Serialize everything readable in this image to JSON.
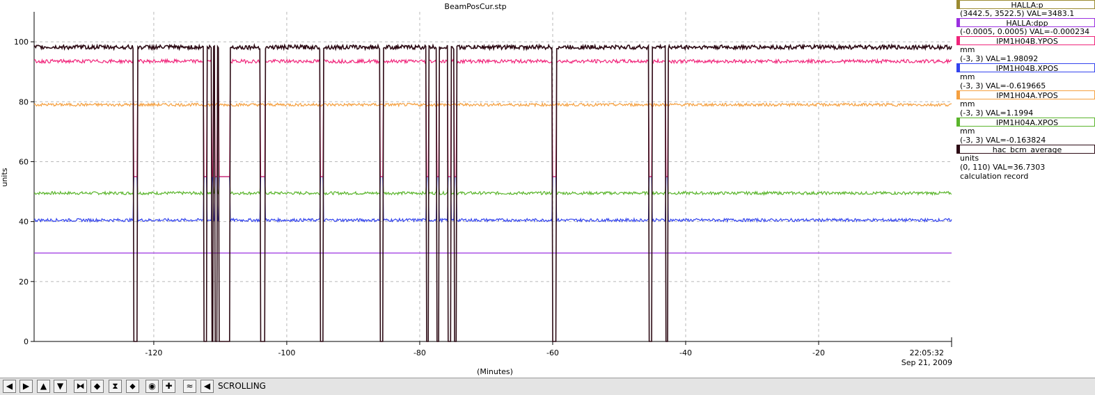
{
  "toolbar": {
    "buttons": [
      {
        "name": "scroll-left-icon",
        "glyph": "◀"
      },
      {
        "name": "scroll-right-icon",
        "glyph": "▶"
      },
      {
        "name": "scroll-up-icon",
        "glyph": "▲"
      },
      {
        "name": "scroll-down-icon",
        "glyph": "▼"
      },
      {
        "name": "zoom-in-horizontal-icon",
        "glyph": "⧓"
      },
      {
        "name": "zoom-out-horizontal-icon",
        "glyph": "◆"
      },
      {
        "name": "zoom-in-vertical-icon",
        "glyph": "⧗"
      },
      {
        "name": "zoom-out-vertical-icon",
        "glyph": "⬥"
      },
      {
        "name": "record-icon",
        "glyph": "◉"
      },
      {
        "name": "add-icon",
        "glyph": "✚"
      },
      {
        "name": "waveform-icon",
        "glyph": "≈"
      },
      {
        "name": "scroll-mode-icon",
        "glyph": "◀"
      }
    ],
    "mode_label": "SCROLLING"
  },
  "legend": [
    {
      "name": "HALLA:p",
      "color": "#9b8a30",
      "lines": [
        "(3442.5, 3522.5)  VAL=3483.1"
      ]
    },
    {
      "name": "HALLA:dpp",
      "color": "#9b30e0",
      "lines": [
        "(-0.0005, 0.0005) VAL=-0.000234"
      ]
    },
    {
      "name": "IPM1H04B.YPOS",
      "color": "#f0247a",
      "lines": [
        "mm",
        "(-3, 3) VAL=1.98092"
      ]
    },
    {
      "name": "IPM1H04B.XPOS",
      "color": "#3344ee",
      "lines": [
        "mm",
        "(-3, 3) VAL=-0.619665"
      ]
    },
    {
      "name": "IPM1H04A.YPOS",
      "color": "#f5a040",
      "lines": [
        "mm",
        "(-3, 3) VAL=1.1994"
      ]
    },
    {
      "name": "IPM1H04A.XPOS",
      "color": "#5ab52c",
      "lines": [
        "mm",
        "(-3, 3) VAL=-0.163824"
      ]
    },
    {
      "name": "hac_bcm_average",
      "color": "#2c0a14",
      "lines": [
        "units",
        "(0, 110) VAL=36.7303",
        "calculation record"
      ]
    }
  ],
  "chart_data": {
    "type": "line",
    "title": "BeamPosCur.stp",
    "xlabel": "(Minutes)",
    "ylabel": "units",
    "xlim": [
      -138,
      0
    ],
    "ylim": [
      0,
      110
    ],
    "x_ticks": [
      -120,
      -100,
      -80,
      -60,
      -40,
      -20
    ],
    "x_tick_labels": [
      "-120",
      "-100",
      "-80",
      "-60",
      "-40",
      "-20"
    ],
    "y_ticks": [
      0,
      20,
      40,
      60,
      80,
      100
    ],
    "y_tick_labels": [
      "0",
      "20",
      "40",
      "60",
      "80",
      "100"
    ],
    "end_time": "22:05:32",
    "end_date": "Sep 21, 2009",
    "grid": true,
    "beam_trips": [
      [
        -123,
        -122.5
      ],
      [
        -112.5,
        -112
      ],
      [
        -111.3,
        -111
      ],
      [
        -110.8,
        -110.5
      ],
      [
        -110.2,
        -108.5
      ],
      [
        -104,
        -103.3
      ],
      [
        -95,
        -94.5
      ],
      [
        -86,
        -85.5
      ],
      [
        -79,
        -78.6
      ],
      [
        -77.5,
        -77.1
      ],
      [
        -75.8,
        -75.3
      ],
      [
        -74.8,
        -74.4
      ],
      [
        -60,
        -59.5
      ],
      [
        -45.5,
        -45
      ],
      [
        -43,
        -42.6
      ]
    ],
    "series": [
      {
        "name": "HALLA:dpp",
        "color": "#9b30e0",
        "baseline": 29.5,
        "noise": 0,
        "dip": null
      },
      {
        "name": "IPM1H04A.XPOS",
        "color": "#5ab52c",
        "baseline": 49.5,
        "noise": 0.5,
        "dip": 55
      },
      {
        "name": "IPM1H04B.XPOS",
        "color": "#3344ee",
        "baseline": 40.5,
        "noise": 0.5,
        "dip": 55
      },
      {
        "name": "IPM1H04A.YPOS",
        "color": "#f5a040",
        "baseline": 79,
        "noise": 0.5,
        "dip": null
      },
      {
        "name": "IPM1H04B.YPOS",
        "color": "#f0247a",
        "baseline": 93.5,
        "noise": 0.6,
        "dip": 55
      },
      {
        "name": "hac_bcm_average",
        "color": "#2c0a14",
        "baseline": 98.2,
        "noise": 0.7,
        "dip": 0
      }
    ]
  }
}
